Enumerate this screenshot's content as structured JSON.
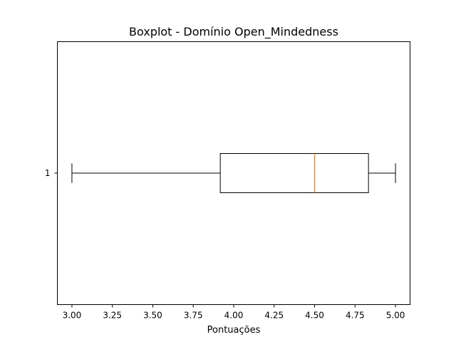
{
  "chart_data": {
    "type": "boxplot",
    "orientation": "horizontal",
    "title": "Boxplot - Domínio Open_Mindedness",
    "xlabel": "Pontuações",
    "ylabel": "",
    "xlim": [
      2.91,
      5.09
    ],
    "x_ticks": [
      "3.00",
      "3.25",
      "3.50",
      "3.75",
      "4.00",
      "4.25",
      "4.50",
      "4.75",
      "5.00"
    ],
    "y_ticks": [
      "1"
    ],
    "grid": false,
    "series": [
      {
        "category": "1",
        "whisker_low": 3.0,
        "q1": 3.917,
        "median": 4.5,
        "q3": 4.833,
        "whisker_high": 5.0
      }
    ],
    "colors": {
      "box": "#000000",
      "median": "#ff7f0e",
      "axes": "#000000",
      "background": "#ffffff"
    }
  }
}
